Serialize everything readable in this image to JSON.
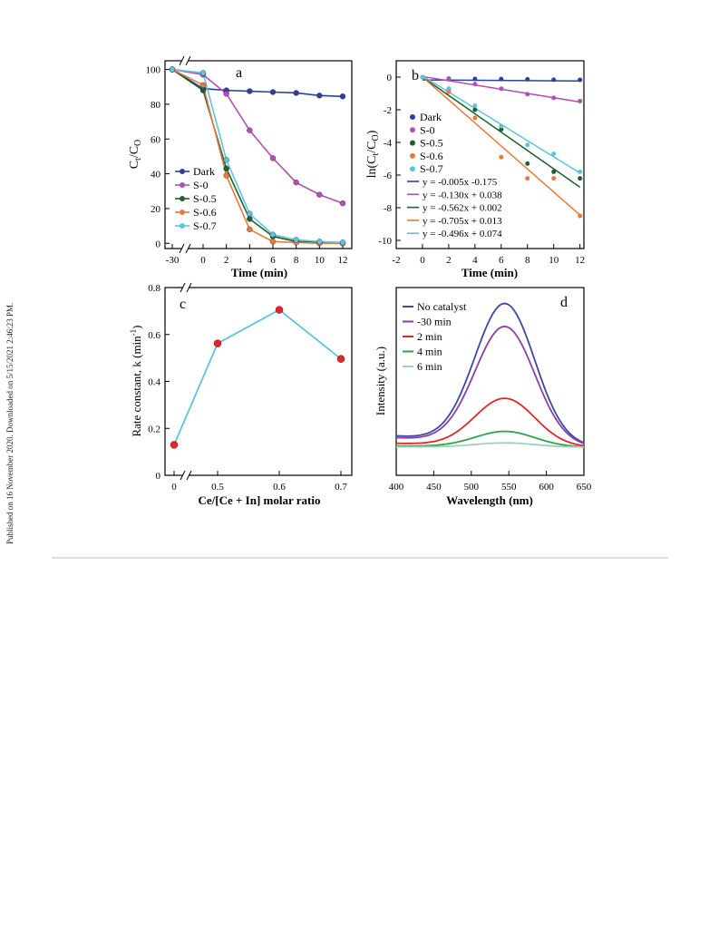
{
  "side_note": "Published on 16 November 2020. Downloaded on 5/15/2021 2:46:23 PM.",
  "chart_data": [
    {
      "panel": "a",
      "type": "line",
      "xlabel": "Time (min)",
      "ylabel": "Ct/Co",
      "x_ticks": [
        "-30",
        "0",
        "2",
        "4",
        "6",
        "8",
        "10",
        "12"
      ],
      "y_ticks": [
        "0",
        "20",
        "40",
        "60",
        "80",
        "100"
      ],
      "ylim": [
        -3,
        105
      ],
      "axis_break": "x between -30 and 0",
      "legend": "lower-left",
      "series": [
        {
          "name": "Dark",
          "color": "#2f3f9e",
          "marker": "circle",
          "x": [
            -30,
            0,
            2,
            4,
            6,
            8,
            10,
            12
          ],
          "y": [
            100,
            89,
            88,
            87.5,
            87,
            86.5,
            85,
            84.5
          ]
        },
        {
          "name": "S-0",
          "color": "#b34fb0",
          "marker": "circle",
          "x": [
            -30,
            0,
            2,
            4,
            6,
            8,
            10,
            12
          ],
          "y": [
            100,
            97,
            86,
            65,
            49,
            35,
            28,
            23
          ]
        },
        {
          "name": "S-0.5",
          "color": "#1f5f30",
          "marker": "circle",
          "x": [
            -30,
            0,
            2,
            4,
            6,
            8,
            10,
            12
          ],
          "y": [
            100,
            88,
            43,
            14,
            4,
            1,
            0.5,
            0
          ]
        },
        {
          "name": "S-0.6",
          "color": "#e87a3a",
          "marker": "circle",
          "x": [
            -30,
            0,
            2,
            4,
            6,
            8,
            10,
            12
          ],
          "y": [
            100,
            91,
            39,
            8,
            1,
            0.5,
            0,
            0
          ]
        },
        {
          "name": "S-0.7",
          "color": "#5ec4dd",
          "marker": "circle",
          "x": [
            -30,
            0,
            2,
            4,
            6,
            8,
            10,
            12
          ],
          "y": [
            100,
            98,
            48,
            17,
            5,
            2,
            1,
            0.5
          ]
        }
      ]
    },
    {
      "panel": "b",
      "type": "scatter",
      "xlabel": "Time (min)",
      "ylabel": "ln(Ct/Co)",
      "x_ticks": [
        "-2",
        "0",
        "2",
        "4",
        "6",
        "8",
        "10",
        "12"
      ],
      "y_ticks": [
        "0",
        "-2",
        "-4",
        "-6",
        "-8",
        "-10"
      ],
      "xlim": [
        -2,
        12.3
      ],
      "ylim": [
        -10.5,
        1
      ],
      "legend": "left",
      "series": [
        {
          "name": "Dark",
          "color": "#2f3f9e",
          "x": [
            0,
            2,
            4,
            6,
            8,
            10,
            12
          ],
          "y": [
            0,
            -0.1,
            -0.11,
            -0.12,
            -0.13,
            -0.16,
            -0.17
          ]
        },
        {
          "name": "S-0",
          "color": "#b34fb0",
          "x": [
            0,
            2,
            4,
            6,
            8,
            10,
            12
          ],
          "y": [
            0,
            -0.13,
            -0.43,
            -0.71,
            -1.05,
            -1.27,
            -1.47
          ]
        },
        {
          "name": "S-0.5",
          "color": "#1f5f30",
          "x": [
            0,
            2,
            4,
            6,
            8,
            10,
            12
          ],
          "y": [
            0,
            -0.75,
            -2.0,
            -3.2,
            -5.3,
            -5.8,
            -6.2
          ]
        },
        {
          "name": "S-0.6",
          "color": "#e87a3a",
          "x": [
            0,
            2,
            4,
            6,
            8,
            10,
            12
          ],
          "y": [
            0,
            -0.9,
            -2.5,
            -4.9,
            -6.2,
            -6.2,
            -8.5
          ]
        },
        {
          "name": "S-0.7",
          "color": "#5ec4dd",
          "x": [
            0,
            2,
            4,
            6,
            8,
            10,
            12
          ],
          "y": [
            0,
            -0.7,
            -1.75,
            -3.0,
            -4.15,
            -4.7,
            -5.8
          ]
        }
      ],
      "fits": [
        {
          "label": "y = -0.005x -0.175",
          "color": "#2f3f9e",
          "slope": -0.005,
          "intercept": -0.175
        },
        {
          "label": "y = -0.130x + 0.038",
          "color": "#b34fb0",
          "slope": -0.13,
          "intercept": 0.038
        },
        {
          "label": "y = -0.562x + 0.002",
          "color": "#1f5f30",
          "slope": -0.562,
          "intercept": 0.002
        },
        {
          "label": "y = -0.705x + 0.013",
          "color": "#e87a3a",
          "slope": -0.705,
          "intercept": 0.013
        },
        {
          "label": "y = -0.496x + 0.074",
          "color": "#5ec4dd",
          "slope": -0.496,
          "intercept": 0.074
        }
      ]
    },
    {
      "panel": "c",
      "type": "line",
      "xlabel": "Ce/[Ce + In] molar ratio",
      "ylabel": "Rate constant, k (min-1)",
      "x_ticks": [
        "0",
        "0.5",
        "0.6",
        "0.7"
      ],
      "y_ticks": [
        "0",
        "0.2",
        "0.4",
        "0.6",
        "0.8"
      ],
      "ylim": [
        0,
        0.8
      ],
      "axis_break": "x between 0 and 0.5",
      "line_color": "#5ec4dd",
      "marker_color": "#e0262a",
      "x": [
        0,
        0.5,
        0.6,
        0.7
      ],
      "y": [
        0.13,
        0.562,
        0.705,
        0.496
      ]
    },
    {
      "panel": "d",
      "type": "line",
      "xlabel": "Wavelength (nm)",
      "ylabel": "Intensity (a.u.)",
      "x_ticks": [
        "400",
        "450",
        "500",
        "550",
        "600",
        "650"
      ],
      "xlim": [
        400,
        650
      ],
      "legend": "top-left",
      "peak_nm": 545,
      "series": [
        {
          "name": "No catalyst",
          "color": "#3b49a6",
          "peak": 1.0
        },
        {
          "name": "-30 min",
          "color": "#8a3fa8",
          "peak": 0.84
        },
        {
          "name": "2 min",
          "color": "#e0262a",
          "peak": 0.34
        },
        {
          "name": "4 min",
          "color": "#2ea44a",
          "peak": 0.11
        },
        {
          "name": "6 min",
          "color": "#9fd0b8",
          "peak": 0.03
        }
      ]
    }
  ]
}
